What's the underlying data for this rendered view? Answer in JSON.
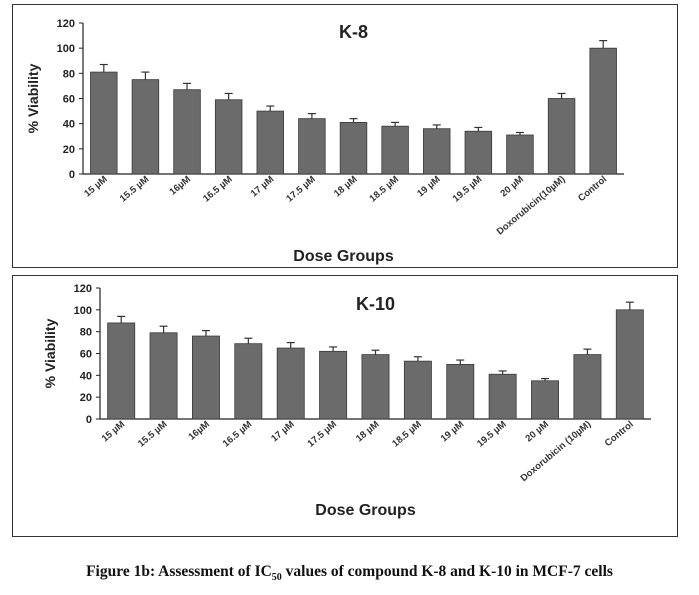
{
  "caption": {
    "prefix": "Figure 1b: Assessment of IC",
    "subscript": "50",
    "suffix": " values of compound K-8 and K-10 in MCF-7 cells"
  },
  "chart_data": [
    {
      "type": "bar",
      "title": "K-8",
      "xlabel": "Dose Groups",
      "ylabel": "% Viability",
      "ylim": [
        0,
        120
      ],
      "yticks": [
        0,
        20,
        40,
        60,
        80,
        100,
        120
      ],
      "categories": [
        "15 µM",
        "15.5 µM",
        "16µM",
        "16.5 µM",
        "17 µM",
        "17.5 µM",
        "18 µM",
        "18.5 µM",
        "19 µM",
        "19.5 µM",
        "20 µM",
        "Doxorubicin(10µM)",
        "Control"
      ],
      "values": [
        81,
        75,
        67,
        59,
        50,
        44,
        41,
        38,
        36,
        34,
        31,
        60,
        100
      ],
      "errors": [
        6,
        6,
        5,
        5,
        4,
        4,
        3,
        3,
        3,
        3,
        2,
        4,
        6
      ],
      "bar_color": "#6b6b6b",
      "grid": false
    },
    {
      "type": "bar",
      "title": "K-10",
      "xlabel": "Dose Groups",
      "ylabel": "% Viability",
      "ylim": [
        0,
        120
      ],
      "yticks": [
        0,
        20,
        40,
        60,
        80,
        100,
        120
      ],
      "categories": [
        "15 µM",
        "15.5 µM",
        "16µM",
        "16.5 µM",
        "17 µM",
        "17.5 µM",
        "18 µM",
        "18.5 µM",
        "19 µM",
        "19.5 µM",
        "20 µM",
        "Doxorubicin (10µM)",
        "Control"
      ],
      "values": [
        88,
        79,
        76,
        69,
        65,
        62,
        59,
        53,
        50,
        41,
        35,
        59,
        100
      ],
      "errors": [
        6,
        6,
        5,
        5,
        5,
        4,
        4,
        4,
        4,
        3,
        2,
        5,
        7
      ],
      "bar_color": "#6b6b6b",
      "grid": false
    }
  ]
}
